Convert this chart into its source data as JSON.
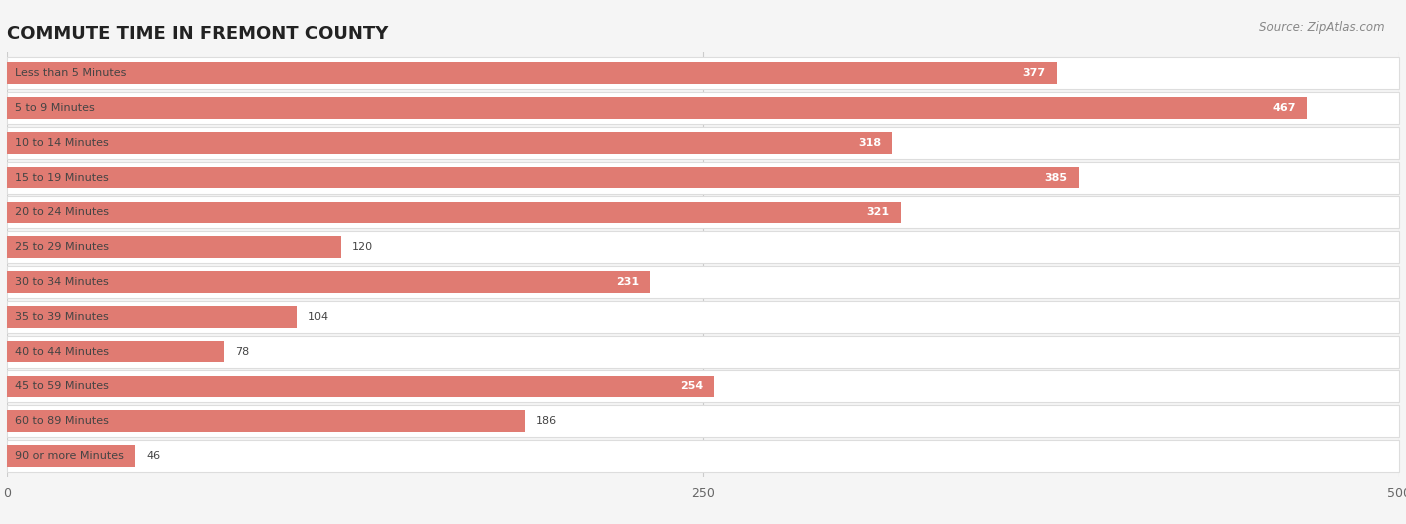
{
  "title": "COMMUTE TIME IN FREMONT COUNTY",
  "source": "Source: ZipAtlas.com",
  "categories": [
    "Less than 5 Minutes",
    "5 to 9 Minutes",
    "10 to 14 Minutes",
    "15 to 19 Minutes",
    "20 to 24 Minutes",
    "25 to 29 Minutes",
    "30 to 34 Minutes",
    "35 to 39 Minutes",
    "40 to 44 Minutes",
    "45 to 59 Minutes",
    "60 to 89 Minutes",
    "90 or more Minutes"
  ],
  "values": [
    377,
    467,
    318,
    385,
    321,
    120,
    231,
    104,
    78,
    254,
    186,
    46
  ],
  "xlim": [
    0,
    500
  ],
  "xticks": [
    0,
    250,
    500
  ],
  "bar_color": "#e07b72",
  "background_color": "#f5f5f5",
  "row_bg_color": "#ffffff",
  "row_border_color": "#dddddd",
  "title_fontsize": 13,
  "source_fontsize": 8.5,
  "label_fontsize": 8,
  "value_fontsize": 8,
  "grid_color": "#cccccc",
  "text_color_dark": "#444444",
  "text_color_white": "#ffffff"
}
